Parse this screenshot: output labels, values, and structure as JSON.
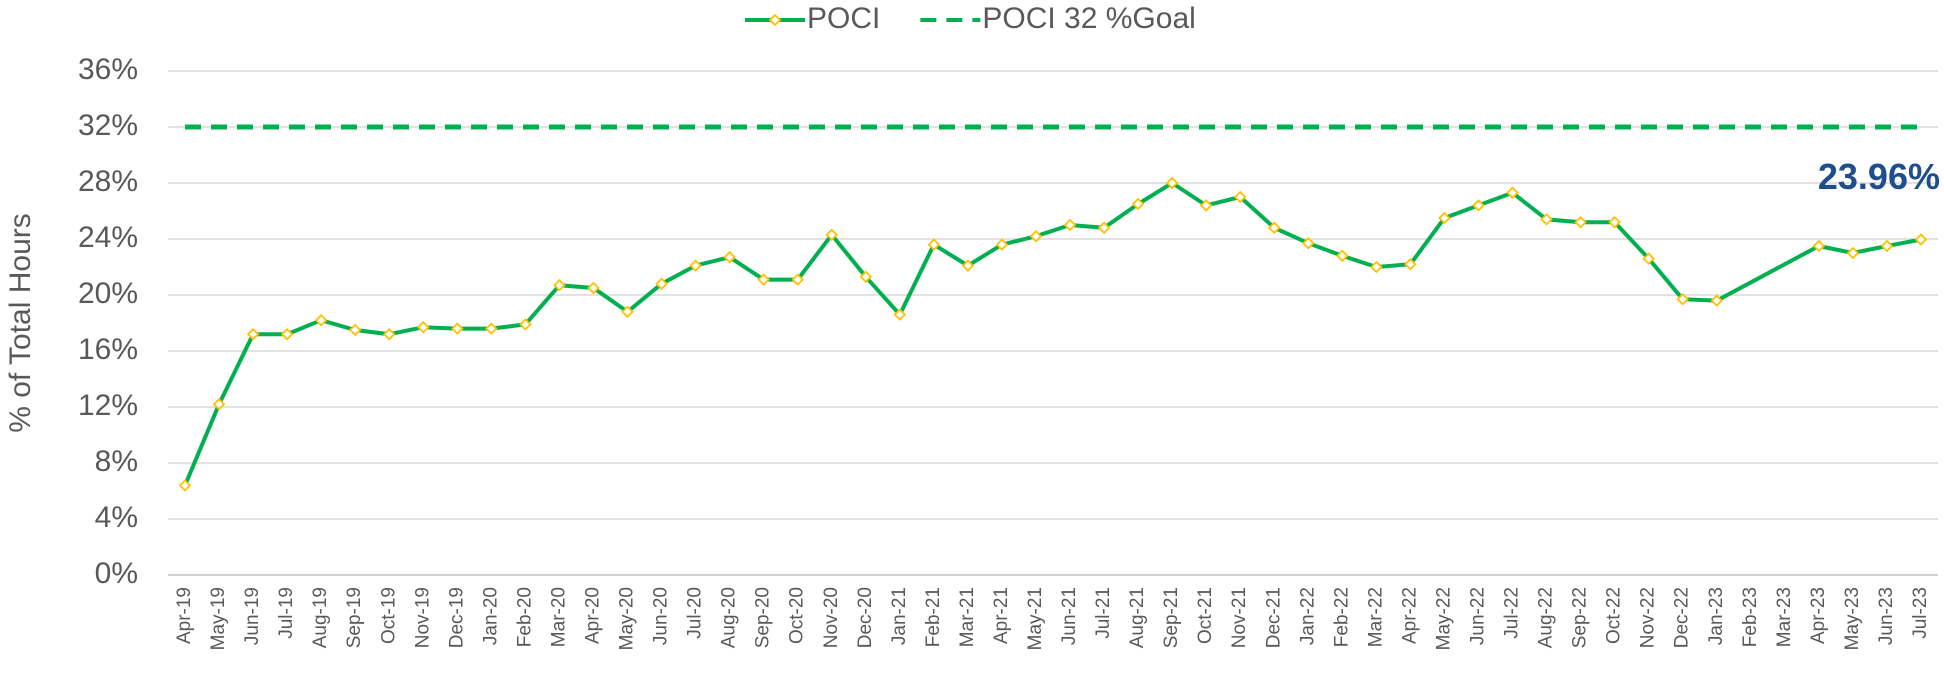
{
  "chart_data": {
    "type": "line",
    "y_label": "% of Total Hours",
    "categories": [
      "Apr-19",
      "May-19",
      "Jun-19",
      "Jul-19",
      "Aug-19",
      "Sep-19",
      "Oct-19",
      "Nov-19",
      "Dec-19",
      "Jan-20",
      "Feb-20",
      "Mar-20",
      "Apr-20",
      "May-20",
      "Jun-20",
      "Jul-20",
      "Aug-20",
      "Sep-20",
      "Oct-20",
      "Nov-20",
      "Dec-20",
      "Jan-21",
      "Feb-21",
      "Mar-21",
      "Apr-21",
      "May-21",
      "Jun-21",
      "Jul-21",
      "Aug-21",
      "Sep-21",
      "Oct-21",
      "Nov-21",
      "Dec-21",
      "Jan-22",
      "Feb-22",
      "Mar-22",
      "Apr-22",
      "May-22",
      "Jun-22",
      "Jul-22",
      "Aug-22",
      "Sep-22",
      "Oct-22",
      "Nov-22",
      "Dec-22",
      "Jan-23",
      "Feb-23",
      "Mar-23",
      "Apr-23",
      "May-23",
      "Jun-23",
      "Jul-23"
    ],
    "series": [
      {
        "name": "POCI",
        "color": "#00b050",
        "marker_color": "#ffc000",
        "connect_gaps": true,
        "values": [
          6.4,
          12.2,
          17.2,
          17.2,
          18.2,
          17.5,
          17.2,
          17.7,
          17.6,
          17.6,
          17.9,
          20.7,
          20.5,
          18.8,
          20.8,
          22.1,
          22.7,
          21.1,
          21.1,
          24.3,
          21.3,
          18.6,
          23.6,
          22.1,
          23.6,
          24.2,
          25.0,
          24.8,
          26.5,
          28.0,
          26.4,
          27.0,
          24.8,
          23.7,
          22.8,
          22.0,
          22.2,
          25.5,
          26.4,
          27.3,
          25.4,
          25.2,
          25.2,
          22.6,
          19.7,
          19.6,
          null,
          null,
          23.5,
          23.0,
          23.5,
          23.96
        ],
        "value_labels": [
          null,
          null,
          null,
          null,
          null,
          null,
          null,
          null,
          null,
          null,
          null,
          null,
          null,
          null,
          null,
          null,
          null,
          null,
          null,
          null,
          null,
          null,
          null,
          null,
          null,
          null,
          null,
          null,
          null,
          null,
          null,
          null,
          null,
          null,
          null,
          null,
          null,
          null,
          null,
          null,
          null,
          null,
          null,
          null,
          null,
          null,
          null,
          null,
          null,
          null,
          null,
          "23.96%"
        ],
        "label_color": "#1f4e8c"
      },
      {
        "name": "POCI 32 %Goal",
        "color": "#00b050",
        "dashed": true,
        "values": [
          32,
          32,
          32,
          32,
          32,
          32,
          32,
          32,
          32,
          32,
          32,
          32,
          32,
          32,
          32,
          32,
          32,
          32,
          32,
          32,
          32,
          32,
          32,
          32,
          32,
          32,
          32,
          32,
          32,
          32,
          32,
          32,
          32,
          32,
          32,
          32,
          32,
          32,
          32,
          32,
          32,
          32,
          32,
          32,
          32,
          32,
          32,
          32,
          32,
          32,
          32,
          32
        ]
      }
    ],
    "ylim": [
      0,
      36
    ],
    "yticks": [
      {
        "value": 0,
        "label": "0%"
      },
      {
        "value": 4,
        "label": "4%"
      },
      {
        "value": 8,
        "label": "8%"
      },
      {
        "value": 12,
        "label": "12%"
      },
      {
        "value": 16,
        "label": "16%"
      },
      {
        "value": 20,
        "label": "20%"
      },
      {
        "value": 24,
        "label": "24%"
      },
      {
        "value": 28,
        "label": "28%"
      },
      {
        "value": 32,
        "label": "32%"
      },
      {
        "value": 36,
        "label": "36%"
      }
    ],
    "grid": true,
    "legend": "top"
  }
}
